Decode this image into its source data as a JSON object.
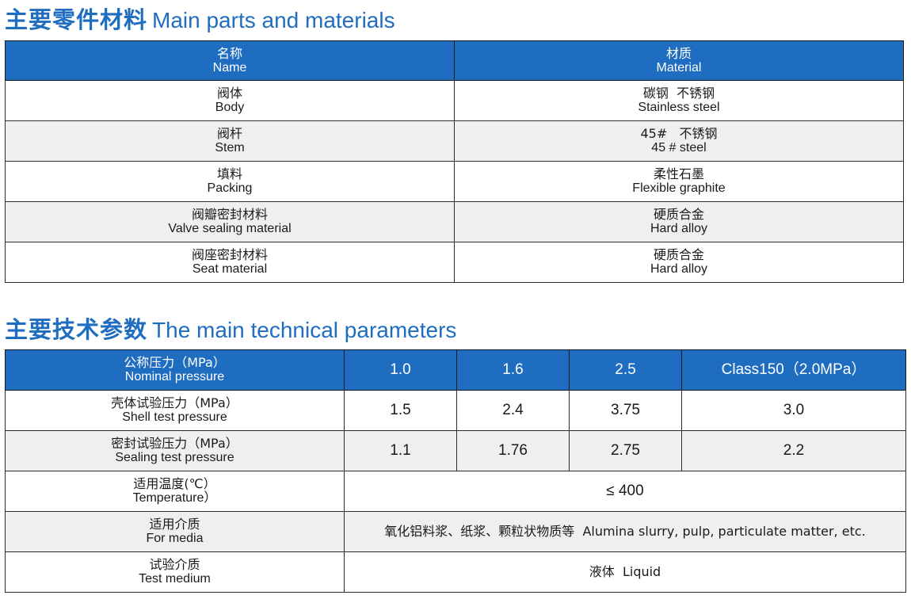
{
  "section1": {
    "title_cn": "主要零件材料",
    "title_en": "Main parts and materials",
    "header": {
      "name_cn": "名称",
      "name_en": "Name",
      "material_cn": "材质",
      "material_en": "Material"
    },
    "rows": [
      {
        "name_cn": "阀体",
        "name_en": "Body",
        "material_cn": "碳钢  不锈钢",
        "material_en": "Stainless steel"
      },
      {
        "name_cn": "阀杆",
        "name_en": "Stem",
        "material_cn": "45#   不锈钢",
        "material_en": "45 # steel"
      },
      {
        "name_cn": "填料",
        "name_en": "Packing",
        "material_cn": "柔性石墨",
        "material_en": "Flexible graphite"
      },
      {
        "name_cn": "阀瓣密封材料",
        "name_en": "Valve sealing material",
        "material_cn": "硬质合金",
        "material_en": "Hard alloy"
      },
      {
        "name_cn": "阀座密封材料",
        "name_en": "Seat material",
        "material_cn": "硬质合金",
        "material_en": "Hard alloy"
      }
    ]
  },
  "section2": {
    "title_cn": "主要技术参数",
    "title_en": "The main technical parameters",
    "header": {
      "label_cn": "公称压力（MPa）",
      "label_en": "Nominal pressure",
      "values": [
        "1.0",
        "1.6",
        "2.5",
        "Class150（2.0MPa）"
      ]
    },
    "shell": {
      "label_cn": "壳体试验压力（MPa）",
      "label_en": "Shell test pressure",
      "values": [
        "1.5",
        "2.4",
        "3.75",
        "3.0"
      ]
    },
    "sealing": {
      "label_cn": "密封试验压力（MPa）",
      "label_en": "Sealing test pressure",
      "values": [
        "1.1",
        "1.76",
        "2.75",
        "2.2"
      ]
    },
    "temperature": {
      "label_cn": "适用温度(℃）",
      "label_en": "Temperature）",
      "value": "≤ 400"
    },
    "media": {
      "label_cn": "适用介质",
      "label_en": "For media",
      "value": "氧化铝料浆、纸浆、颗粒状物质等  Alumina slurry, pulp, particulate matter, etc."
    },
    "test_medium": {
      "label_cn": "试验介质",
      "label_en": "Test medium",
      "value": "液体  Liquid"
    }
  }
}
